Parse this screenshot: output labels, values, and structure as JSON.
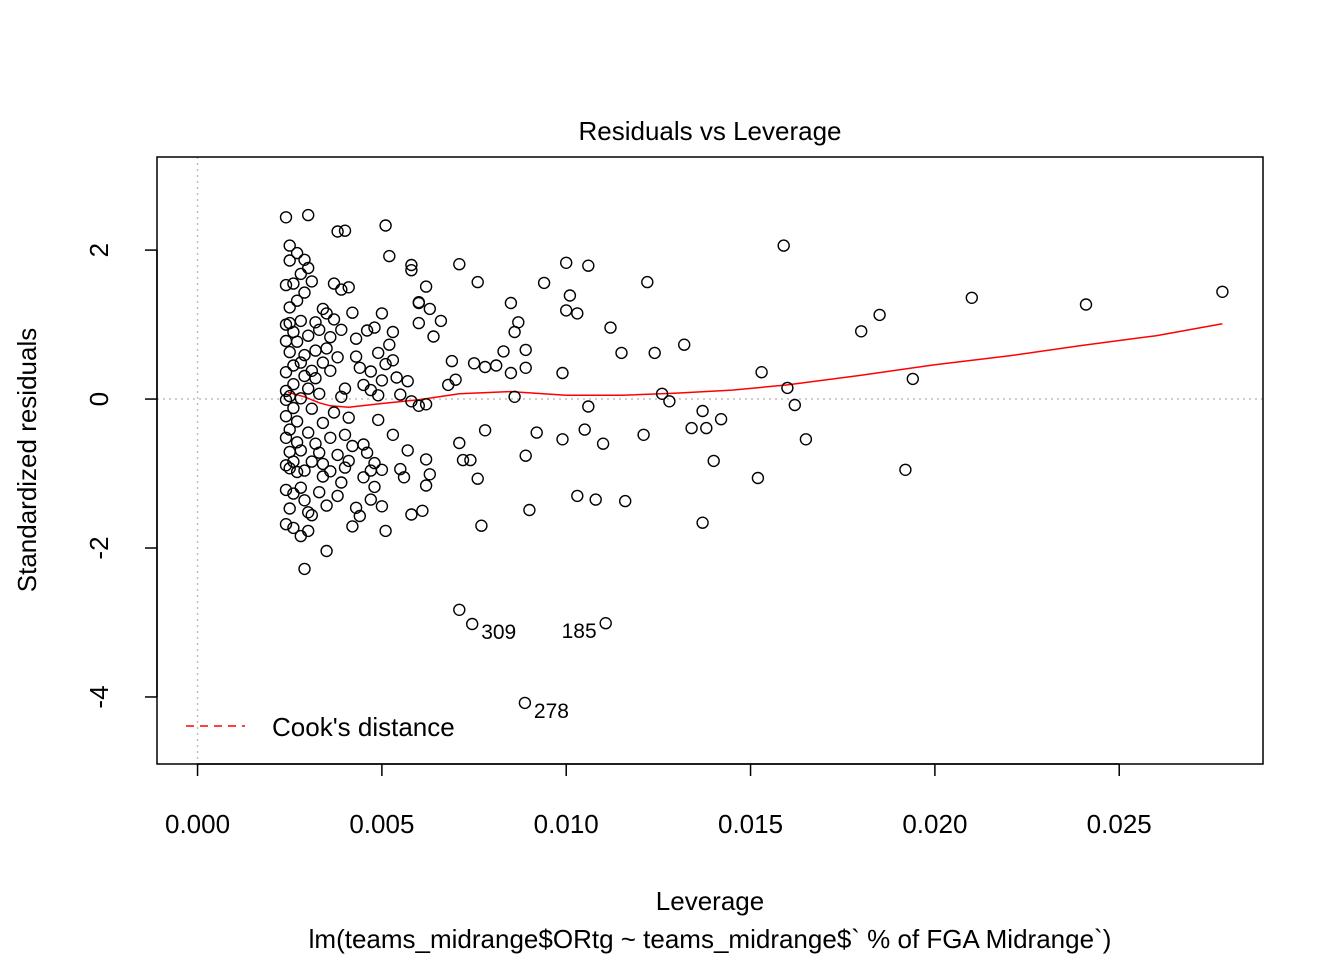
{
  "chart_data": {
    "type": "scatter",
    "title": "Residuals vs Leverage",
    "xlabel": "Leverage",
    "subtitle": "lm(teams_midrange$ORtg ~ teams_midrange$` % of FGA Midrange`)",
    "ylabel": "Standardized residuals",
    "xlim": [
      -0.0011,
      0.0289
    ],
    "ylim": [
      -4.9,
      3.25
    ],
    "x_ticks": [
      "0.000",
      "0.005",
      "0.010",
      "0.015",
      "0.020",
      "0.025"
    ],
    "x_tick_values": [
      0,
      0.005,
      0.01,
      0.015,
      0.02,
      0.025
    ],
    "y_ticks": [
      "-4",
      "-2",
      "0",
      "2"
    ],
    "y_tick_values": [
      -4,
      -2,
      0,
      2
    ],
    "reference_lines": {
      "x": 0,
      "y": 0,
      "style": "dotted",
      "color": "#bebebe"
    },
    "legend": {
      "label": "Cook's distance",
      "style": "dashed",
      "color": "#ff0000",
      "placement": "bottom-left"
    },
    "labeled_points": [
      {
        "label": "309",
        "x": 0.00745,
        "y": -3.02
      },
      {
        "label": "185",
        "x": 0.01107,
        "y": -3.01
      },
      {
        "label": "278",
        "x": 0.00888,
        "y": -4.08
      }
    ],
    "smoother": {
      "color": "#ff0000",
      "x": [
        0.00245,
        0.0029,
        0.0033,
        0.0036,
        0.0041,
        0.005,
        0.006,
        0.0071,
        0.0085,
        0.01,
        0.0115,
        0.013,
        0.0145,
        0.016,
        0.018,
        0.02,
        0.022,
        0.024,
        0.026,
        0.0278
      ],
      "y": [
        0.09,
        0.03,
        -0.05,
        -0.09,
        -0.11,
        -0.06,
        -0.01,
        0.07,
        0.1,
        0.05,
        0.05,
        0.08,
        0.12,
        0.19,
        0.32,
        0.46,
        0.58,
        0.72,
        0.85,
        1.01
      ]
    },
    "series": [
      {
        "points": [
          [
            0.0071,
            -2.83
          ],
          [
            0.00745,
            -3.02
          ],
          [
            0.01107,
            -3.01
          ],
          [
            0.00888,
            -4.08
          ],
          [
            0.0159,
            2.06
          ],
          [
            0.0278,
            1.44
          ],
          [
            0.021,
            1.36
          ],
          [
            0.0241,
            1.27
          ],
          [
            0.0185,
            1.13
          ],
          [
            0.018,
            0.91
          ],
          [
            0.0194,
            0.27
          ],
          [
            0.0192,
            -0.95
          ],
          [
            0.0165,
            -0.54
          ],
          [
            0.0162,
            -0.08
          ],
          [
            0.016,
            0.15
          ],
          [
            0.0153,
            0.36
          ],
          [
            0.0152,
            -1.06
          ],
          [
            0.0142,
            -0.27
          ],
          [
            0.014,
            -0.83
          ],
          [
            0.0138,
            -0.39
          ],
          [
            0.0137,
            -0.16
          ],
          [
            0.0137,
            -1.66
          ],
          [
            0.0134,
            -0.39
          ],
          [
            0.0132,
            0.73
          ],
          [
            0.0128,
            -0.03
          ],
          [
            0.0126,
            0.07
          ],
          [
            0.0124,
            0.62
          ],
          [
            0.0122,
            1.57
          ],
          [
            0.0121,
            -0.48
          ],
          [
            0.0116,
            -1.37
          ],
          [
            0.0115,
            0.62
          ],
          [
            0.0112,
            0.96
          ],
          [
            0.011,
            -0.6
          ],
          [
            0.0108,
            -1.35
          ],
          [
            0.0106,
            -0.1
          ],
          [
            0.0106,
            1.79
          ],
          [
            0.0105,
            -0.41
          ],
          [
            0.0103,
            -1.3
          ],
          [
            0.0103,
            1.15
          ],
          [
            0.0101,
            1.39
          ],
          [
            0.01,
            1.19
          ],
          [
            0.01,
            1.83
          ],
          [
            0.0099,
            -0.54
          ],
          [
            0.0099,
            0.35
          ],
          [
            0.0094,
            1.56
          ],
          [
            0.0092,
            -0.45
          ],
          [
            0.009,
            -1.49
          ],
          [
            0.0089,
            -0.76
          ],
          [
            0.0089,
            0.66
          ],
          [
            0.0089,
            0.42
          ],
          [
            0.0087,
            1.03
          ],
          [
            0.0086,
            0.9
          ],
          [
            0.0086,
            0.03
          ],
          [
            0.0085,
            1.29
          ],
          [
            0.0085,
            0.35
          ],
          [
            0.0083,
            0.64
          ],
          [
            0.0081,
            0.45
          ],
          [
            0.0078,
            -0.42
          ],
          [
            0.0078,
            0.43
          ],
          [
            0.0077,
            -1.7
          ],
          [
            0.0076,
            1.57
          ],
          [
            0.0076,
            -1.07
          ],
          [
            0.0075,
            0.48
          ],
          [
            0.0074,
            -0.82
          ],
          [
            0.0072,
            -0.82
          ],
          [
            0.0071,
            -0.59
          ],
          [
            0.0071,
            1.81
          ],
          [
            0.007,
            0.26
          ],
          [
            0.0069,
            0.51
          ],
          [
            0.0068,
            0.19
          ],
          [
            0.0066,
            1.05
          ],
          [
            0.0064,
            0.84
          ],
          [
            0.0063,
            1.21
          ],
          [
            0.0063,
            -1.01
          ],
          [
            0.0062,
            -1.16
          ],
          [
            0.0062,
            -0.07
          ],
          [
            0.0062,
            -0.81
          ],
          [
            0.0062,
            1.51
          ],
          [
            0.0061,
            -1.5
          ],
          [
            0.006,
            1.02
          ],
          [
            0.006,
            1.29
          ],
          [
            0.006,
            -0.09
          ],
          [
            0.006,
            1.3
          ],
          [
            0.0058,
            1.8
          ],
          [
            0.0058,
            1.73
          ],
          [
            0.0058,
            -0.03
          ],
          [
            0.0058,
            -1.55
          ],
          [
            0.0057,
            -0.69
          ],
          [
            0.0057,
            0.24
          ],
          [
            0.0056,
            -1.05
          ],
          [
            0.0055,
            -0.94
          ],
          [
            0.0055,
            0.06
          ],
          [
            0.0054,
            0.29
          ],
          [
            0.0053,
            -0.48
          ],
          [
            0.0053,
            0.9
          ],
          [
            0.0053,
            0.52
          ],
          [
            0.0052,
            1.92
          ],
          [
            0.0052,
            0.73
          ],
          [
            0.0051,
            -1.77
          ],
          [
            0.0051,
            2.33
          ],
          [
            0.0051,
            0.47
          ],
          [
            0.005,
            -1.44
          ],
          [
            0.005,
            -0.95
          ],
          [
            0.005,
            0.25
          ],
          [
            0.005,
            1.15
          ],
          [
            0.0049,
            -0.28
          ],
          [
            0.0049,
            0.62
          ],
          [
            0.0049,
            0.05
          ],
          [
            0.0048,
            -1.18
          ],
          [
            0.0048,
            0.96
          ],
          [
            0.0048,
            -0.86
          ],
          [
            0.0047,
            -1.35
          ],
          [
            0.0047,
            -0.96
          ],
          [
            0.0047,
            0.37
          ],
          [
            0.0047,
            0.12
          ],
          [
            0.0046,
            -0.72
          ],
          [
            0.0046,
            0.92
          ],
          [
            0.0045,
            -1.05
          ],
          [
            0.0045,
            -0.61
          ],
          [
            0.0045,
            0.19
          ],
          [
            0.0044,
            0.42
          ],
          [
            0.0044,
            -1.57
          ],
          [
            0.0043,
            0.81
          ],
          [
            0.0043,
            -1.46
          ],
          [
            0.0043,
            0.57
          ],
          [
            0.0042,
            -0.63
          ],
          [
            0.0042,
            1.16
          ],
          [
            0.0042,
            -1.71
          ],
          [
            0.0041,
            -0.25
          ],
          [
            0.0041,
            -0.83
          ],
          [
            0.0041,
            1.5
          ],
          [
            0.004,
            0.14
          ],
          [
            0.004,
            2.26
          ],
          [
            0.004,
            -0.48
          ],
          [
            0.004,
            -0.92
          ],
          [
            0.0039,
            1.47
          ],
          [
            0.0039,
            -1.12
          ],
          [
            0.0039,
            0.03
          ],
          [
            0.0039,
            0.93
          ],
          [
            0.0038,
            2.25
          ],
          [
            0.0038,
            -0.75
          ],
          [
            0.0038,
            0.56
          ],
          [
            0.0038,
            -1.3
          ],
          [
            0.0037,
            1.55
          ],
          [
            0.0037,
            -0.18
          ],
          [
            0.0037,
            1.07
          ],
          [
            0.0036,
            0.83
          ],
          [
            0.0036,
            -0.97
          ],
          [
            0.0036,
            -0.52
          ],
          [
            0.0036,
            0.38
          ],
          [
            0.0035,
            1.15
          ],
          [
            0.0035,
            -1.43
          ],
          [
            0.0035,
            -2.04
          ],
          [
            0.0035,
            0.68
          ],
          [
            0.0034,
            -0.87
          ],
          [
            0.0034,
            1.21
          ],
          [
            0.0034,
            0.49
          ],
          [
            0.0034,
            -1.04
          ],
          [
            0.0034,
            -0.32
          ],
          [
            0.0033,
            0.07
          ],
          [
            0.0033,
            0.93
          ],
          [
            0.0033,
            -0.72
          ],
          [
            0.0033,
            -1.25
          ],
          [
            0.0032,
            0.28
          ],
          [
            0.0032,
            1.03
          ],
          [
            0.0032,
            -0.6
          ],
          [
            0.0032,
            0.65
          ],
          [
            0.0031,
            -0.13
          ],
          [
            0.0031,
            -1.56
          ],
          [
            0.0031,
            1.58
          ],
          [
            0.0031,
            0.38
          ],
          [
            0.0031,
            -0.84
          ],
          [
            0.003,
            2.47
          ],
          [
            0.003,
            -1.77
          ],
          [
            0.003,
            0.85
          ],
          [
            0.003,
            -1.52
          ],
          [
            0.003,
            1.76
          ],
          [
            0.003,
            -0.45
          ],
          [
            0.003,
            0.14
          ],
          [
            0.0029,
            1.43
          ],
          [
            0.0029,
            -0.96
          ],
          [
            0.0029,
            -2.28
          ],
          [
            0.0029,
            0.59
          ],
          [
            0.0029,
            -1.36
          ],
          [
            0.0029,
            1.87
          ],
          [
            0.0029,
            0.31
          ],
          [
            0.0028,
            -0.69
          ],
          [
            0.0028,
            1.05
          ],
          [
            0.0028,
            -1.19
          ],
          [
            0.0028,
            0.01
          ],
          [
            0.0028,
            1.68
          ],
          [
            0.0028,
            -1.84
          ],
          [
            0.0028,
            0.49
          ],
          [
            0.0027,
            -0.3
          ],
          [
            0.0027,
            1.96
          ],
          [
            0.0027,
            -0.98
          ],
          [
            0.0027,
            0.77
          ],
          [
            0.0027,
            1.32
          ],
          [
            0.0027,
            -0.58
          ],
          [
            0.0026,
            0.2
          ],
          [
            0.0026,
            -1.73
          ],
          [
            0.0026,
            1.55
          ],
          [
            0.0026,
            -0.84
          ],
          [
            0.0026,
            0.9
          ],
          [
            0.0026,
            -1.27
          ],
          [
            0.0026,
            0.45
          ],
          [
            0.0026,
            -0.12
          ],
          [
            0.0025,
            1.86
          ],
          [
            0.0025,
            -0.41
          ],
          [
            0.0025,
            2.06
          ],
          [
            0.0025,
            -1.47
          ],
          [
            0.0025,
            0.63
          ],
          [
            0.0025,
            -0.93
          ],
          [
            0.0025,
            1.23
          ],
          [
            0.0025,
            0.04
          ],
          [
            0.0025,
            -0.71
          ],
          [
            0.0025,
            1.02
          ],
          [
            0.0024,
            2.44
          ],
          [
            0.0024,
            -1.68
          ],
          [
            0.0024,
            -1.22
          ],
          [
            0.0024,
            0.36
          ],
          [
            0.0024,
            -0.23
          ],
          [
            0.0024,
            1.53
          ],
          [
            0.0024,
            -0.89
          ],
          [
            0.0024,
            0.78
          ],
          [
            0.0024,
            -0.52
          ],
          [
            0.0024,
            0.11
          ],
          [
            0.0024,
            1.0
          ],
          [
            0.0024,
            -0.01
          ]
        ]
      }
    ]
  }
}
